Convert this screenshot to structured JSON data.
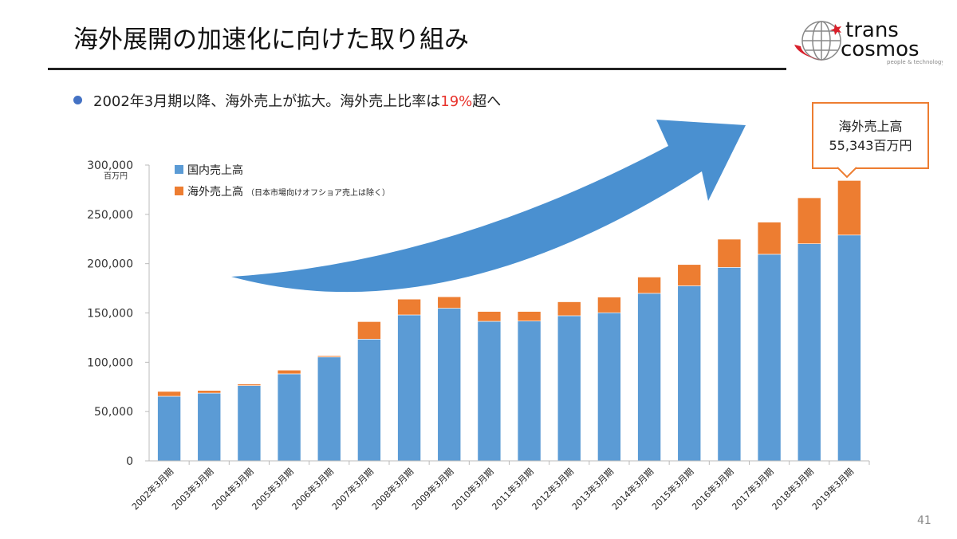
{
  "header": {
    "title": "海外展開の加速化に向けた取り組み",
    "logo_text": [
      "trans",
      "cosmos",
      "people & technology"
    ]
  },
  "bullet": {
    "text_before": "2002年3月期以降、海外売上が拡大。海外売上比率は",
    "highlight": "19%",
    "text_after": "超へ"
  },
  "callout": {
    "line1": "海外売上高",
    "line2": "55,343百万円"
  },
  "page_number": "41",
  "colors": {
    "domestic": "#5b9bd5",
    "overseas": "#ed7d31",
    "arrow": "#4a90d0",
    "highlight": "#e8322b"
  },
  "chart_data": {
    "type": "stacked-bar",
    "ylim": [
      0,
      300000
    ],
    "yticks": [
      "0",
      "50,000",
      "100,000",
      "150,000",
      "200,000",
      "250,000",
      "300,000"
    ],
    "yunit": "百万円",
    "grid": false,
    "legend_position": "top-left",
    "categories": [
      "2002年3月期",
      "2003年3月期",
      "2004年3月期",
      "2005年3月期",
      "2006年3月期",
      "2007年3月期",
      "2008年3月期",
      "2009年3月期",
      "2010年3月期",
      "2011年3月期",
      "2012年3月期",
      "2013年3月期",
      "2014年3月期",
      "2015年3月期",
      "2016年3月期",
      "2017年3月期",
      "2018年3月期",
      "2019年3月期"
    ],
    "series": [
      {
        "name": "国内売上高",
        "values": [
          65500,
          68700,
          76300,
          88200,
          105300,
          123400,
          148000,
          154800,
          141500,
          141800,
          147200,
          150200,
          169900,
          177500,
          196200,
          209500,
          220200,
          229000
        ]
      },
      {
        "name": "海外売上高",
        "note": "（日本市場向けオフショア売上は除く）",
        "values": [
          4900,
          2700,
          1600,
          3800,
          1300,
          17800,
          16000,
          11600,
          10000,
          9700,
          14100,
          15900,
          16500,
          21600,
          28600,
          32600,
          46600,
          55343
        ]
      }
    ]
  }
}
